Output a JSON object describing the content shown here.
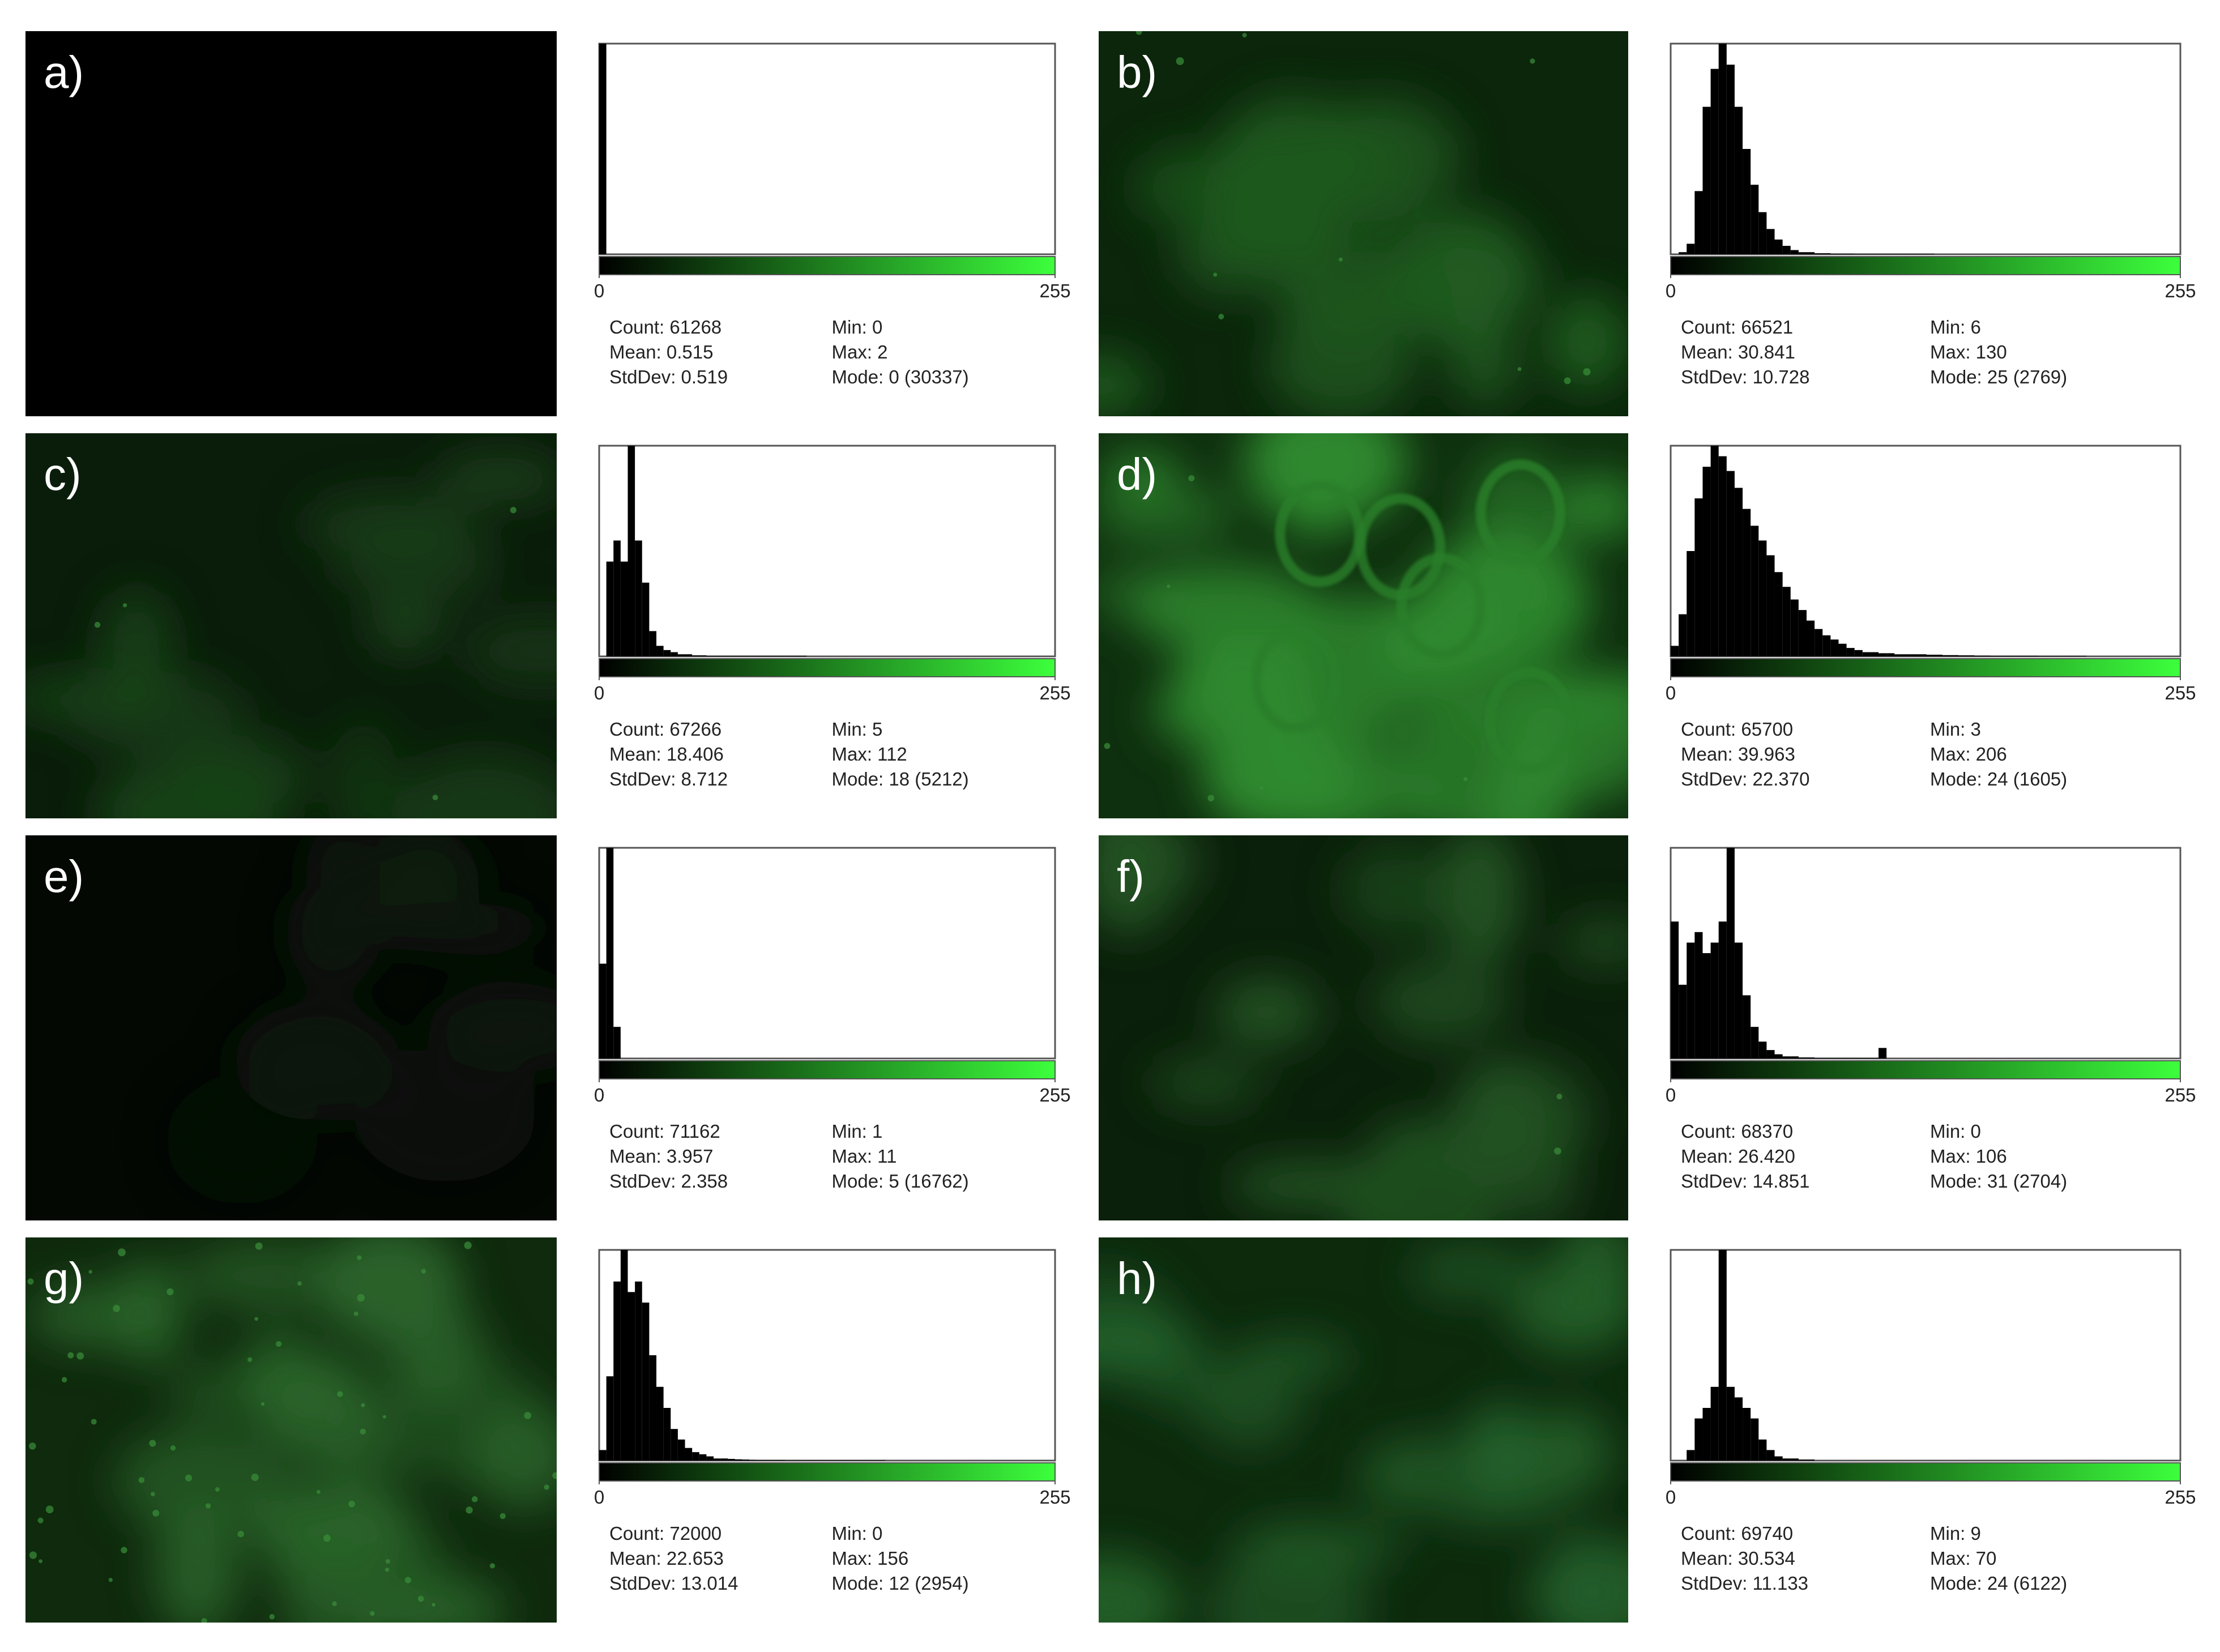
{
  "panels": [
    {
      "label": "a)",
      "histogram": {
        "type": "histogram",
        "xlim": [
          0,
          255
        ],
        "xticks": [
          0,
          255
        ],
        "ylim": [
          0,
          100
        ],
        "bin_width": 4,
        "counts": [
          100
        ]
      },
      "stats": [
        [
          "Count: 61268",
          "Min: 0"
        ],
        [
          "Mean: 0.515",
          "Max: 2"
        ],
        [
          "StdDev: 0.519",
          "Mode: 0 (30337)"
        ]
      ]
    },
    {
      "label": "b)",
      "histogram": {
        "type": "histogram",
        "xlim": [
          0,
          255
        ],
        "xticks": [
          0,
          255
        ],
        "ylim": [
          0,
          100
        ],
        "bin_width": 4,
        "counts": [
          0,
          1,
          5,
          30,
          70,
          88,
          100,
          90,
          70,
          50,
          33,
          20,
          12,
          7,
          4,
          2,
          1,
          1,
          0.5,
          0.5,
          0.3,
          0.3,
          0.3,
          0.2,
          0.2,
          0.2,
          0.2,
          0.2,
          0.2,
          0.2,
          0.2,
          0.2,
          0.2
        ]
      },
      "stats": [
        [
          "Count: 66521",
          "Min: 6"
        ],
        [
          "Mean: 30.841",
          "Max: 130"
        ],
        [
          "StdDev: 10.728",
          "Mode: 25 (2769)"
        ]
      ]
    },
    {
      "label": "c)",
      "histogram": {
        "type": "histogram",
        "xlim": [
          0,
          255
        ],
        "xticks": [
          0,
          255
        ],
        "ylim": [
          0,
          100
        ],
        "bin_width": 4,
        "counts": [
          0,
          45,
          55,
          45,
          100,
          55,
          35,
          12,
          5,
          3,
          2,
          1,
          1,
          0.5,
          0.5,
          0.3,
          0.3,
          0.3,
          0.3,
          0.3,
          0.3,
          0.3,
          0.3,
          0.3,
          0.3,
          0.3,
          0.3,
          0.3,
          0.3
        ]
      },
      "stats": [
        [
          "Count: 67266",
          "Min: 5"
        ],
        [
          "Mean: 18.406",
          "Max: 112"
        ],
        [
          "StdDev: 8.712",
          "Mode: 18 (5212)"
        ]
      ]
    },
    {
      "label": "d)",
      "histogram": {
        "type": "histogram",
        "xlim": [
          0,
          255
        ],
        "xticks": [
          0,
          255
        ],
        "ylim": [
          0,
          100
        ],
        "bin_width": 4,
        "counts": [
          5,
          20,
          50,
          75,
          90,
          100,
          95,
          88,
          80,
          70,
          62,
          55,
          48,
          40,
          33,
          27,
          22,
          17,
          13,
          10,
          8,
          6,
          4,
          3,
          2,
          2,
          1.5,
          1.5,
          1,
          1,
          1,
          1,
          0.8,
          0.8,
          0.6,
          0.6,
          0.5,
          0.5,
          0.4,
          0.4,
          0.3,
          0.3,
          0.3,
          0.3,
          0.3,
          0.3,
          0.2,
          0.2,
          0.2,
          0.2,
          0.2,
          0.2
        ]
      },
      "stats": [
        [
          "Count: 65700",
          "Min: 3"
        ],
        [
          "Mean: 39.963",
          "Max: 206"
        ],
        [
          "StdDev: 22.370",
          "Mode: 24 (1605)"
        ]
      ]
    },
    {
      "label": "e)",
      "histogram": {
        "type": "histogram",
        "xlim": [
          0,
          255
        ],
        "xticks": [
          0,
          255
        ],
        "ylim": [
          0,
          100
        ],
        "bin_width": 4,
        "counts": [
          45,
          100,
          15
        ]
      },
      "stats": [
        [
          "Count: 71162",
          "Min: 1"
        ],
        [
          "Mean: 3.957",
          "Max: 11"
        ],
        [
          "StdDev: 2.358",
          "Mode: 5 (16762)"
        ]
      ]
    },
    {
      "label": "f)",
      "histogram": {
        "type": "histogram",
        "xlim": [
          0,
          255
        ],
        "xticks": [
          0,
          255
        ],
        "ylim": [
          0,
          100
        ],
        "bin_width": 4,
        "counts": [
          65,
          35,
          55,
          60,
          50,
          55,
          65,
          100,
          55,
          30,
          15,
          8,
          4,
          2,
          1,
          1,
          0.5,
          0.5,
          0.3,
          0.3,
          0.3,
          0.3,
          0.3,
          0.3,
          0.3,
          0.3,
          5
        ]
      },
      "stats": [
        [
          "Count: 68370",
          "Min: 0"
        ],
        [
          "Mean: 26.420",
          "Max: 106"
        ],
        [
          "StdDev: 14.851",
          "Mode: 31 (2704)"
        ]
      ]
    },
    {
      "label": "g)",
      "histogram": {
        "type": "histogram",
        "xlim": [
          0,
          255
        ],
        "xticks": [
          0,
          255
        ],
        "ylim": [
          0,
          100
        ],
        "bin_width": 4,
        "counts": [
          5,
          40,
          85,
          100,
          80,
          85,
          75,
          50,
          35,
          25,
          15,
          10,
          6,
          4,
          3,
          2,
          1,
          1,
          0.8,
          0.6,
          0.5,
          0.4,
          0.3,
          0.3,
          0.3,
          0.3,
          0.2,
          0.2,
          0.2,
          0.2,
          0.2,
          0.2,
          0.2,
          0.2,
          0.2,
          0.2,
          0.2,
          0.2,
          0.2,
          0.2
        ]
      },
      "stats": [
        [
          "Count: 72000",
          "Min: 0"
        ],
        [
          "Mean: 22.653",
          "Max: 156"
        ],
        [
          "StdDev: 13.014",
          "Mode: 12 (2954)"
        ]
      ]
    },
    {
      "label": "h)",
      "histogram": {
        "type": "histogram",
        "xlim": [
          0,
          255
        ],
        "xticks": [
          0,
          255
        ],
        "ylim": [
          0,
          100
        ],
        "bin_width": 4,
        "counts": [
          0,
          0,
          5,
          20,
          25,
          35,
          100,
          35,
          30,
          25,
          20,
          10,
          5,
          2,
          1,
          1,
          0.5,
          0.5
        ]
      },
      "stats": [
        [
          "Count: 69740",
          "Min: 9"
        ],
        [
          "Mean: 30.534",
          "Max: 70"
        ],
        [
          "StdDev: 11.133",
          "Mode: 24 (6122)"
        ]
      ]
    }
  ]
}
